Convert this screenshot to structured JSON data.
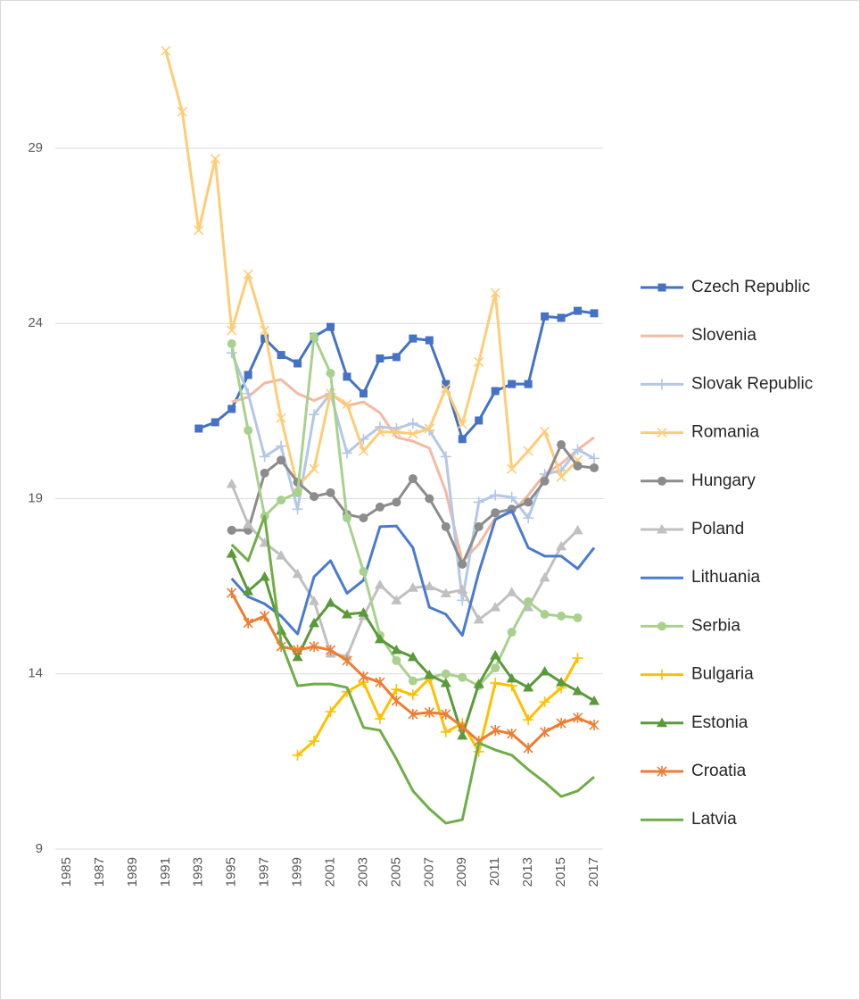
{
  "chart_data": {
    "type": "line",
    "x": [
      1985,
      1986,
      1987,
      1988,
      1989,
      1990,
      1991,
      1992,
      1993,
      1994,
      1995,
      1996,
      1997,
      1998,
      1999,
      2000,
      2001,
      2002,
      2003,
      2004,
      2005,
      2006,
      2007,
      2008,
      2009,
      2010,
      2011,
      2012,
      2013,
      2014,
      2015,
      2016,
      2017
    ],
    "xlim": [
      1985,
      2017
    ],
    "xticks": [
      1985,
      1987,
      1989,
      1991,
      1993,
      1995,
      1997,
      1999,
      2001,
      2003,
      2005,
      2007,
      2009,
      2011,
      2013,
      2015,
      2017
    ],
    "ylim": [
      9,
      33
    ],
    "yticks": [
      9,
      14,
      19,
      24,
      29
    ],
    "grid": true,
    "legend": "right",
    "series": [
      {
        "name": "Czech Republic",
        "color": "#4472c4",
        "marker": "square",
        "values": [
          null,
          null,
          null,
          null,
          null,
          null,
          null,
          null,
          21.0,
          21.18,
          21.56,
          22.53,
          23.57,
          23.1,
          22.86,
          23.62,
          23.9,
          22.48,
          22.0,
          23.0,
          23.04,
          23.57,
          23.52,
          22.27,
          20.7,
          21.23,
          22.07,
          22.27,
          22.27,
          24.2,
          24.16,
          24.36,
          24.29
        ]
      },
      {
        "name": "Slovenia",
        "color": "#f4b9a2",
        "marker": "none",
        "values": [
          null,
          null,
          null,
          null,
          null,
          null,
          null,
          null,
          null,
          null,
          21.76,
          21.9,
          22.3,
          22.4,
          22.0,
          21.8,
          22.0,
          21.65,
          21.76,
          21.45,
          20.75,
          20.64,
          20.44,
          19.2,
          17.2,
          17.7,
          18.45,
          18.6,
          19.1,
          19.7,
          20.0,
          20.4,
          20.75
        ]
      },
      {
        "name": "Slovak Republic",
        "color": "#b4c7e7",
        "marker": "plus",
        "values": [
          null,
          null,
          null,
          null,
          null,
          null,
          null,
          null,
          null,
          null,
          23.16,
          22.0,
          20.2,
          20.5,
          18.7,
          21.4,
          22.0,
          20.3,
          20.7,
          21.05,
          21.0,
          21.15,
          20.95,
          20.2,
          16.1,
          18.9,
          19.1,
          19.04,
          18.45,
          19.7,
          19.8,
          20.4,
          20.15
        ]
      },
      {
        "name": "Romania",
        "color": "#ffcc77",
        "marker": "x",
        "values": [
          null,
          null,
          null,
          null,
          null,
          null,
          31.78,
          30.04,
          26.66,
          28.7,
          23.8,
          25.4,
          23.8,
          21.3,
          19.35,
          19.85,
          22.0,
          21.7,
          20.36,
          20.9,
          20.9,
          20.85,
          21.0,
          22.15,
          21.13,
          22.9,
          24.87,
          19.85,
          20.36,
          20.92,
          19.62,
          20.1,
          null
        ]
      },
      {
        "name": "Hungary",
        "color": "#8c8c8c",
        "marker": "circle",
        "values": [
          null,
          null,
          null,
          null,
          null,
          null,
          null,
          null,
          null,
          null,
          18.1,
          18.1,
          19.73,
          20.1,
          19.47,
          19.06,
          19.17,
          18.55,
          18.45,
          18.76,
          18.9,
          19.57,
          19.0,
          18.2,
          17.13,
          18.2,
          18.6,
          18.7,
          18.9,
          19.5,
          20.54,
          19.93,
          19.88
        ]
      },
      {
        "name": "Poland",
        "color": "#c0c0c0",
        "marker": "triangle",
        "values": [
          null,
          null,
          null,
          null,
          null,
          null,
          null,
          null,
          null,
          null,
          19.42,
          18.27,
          17.74,
          17.38,
          16.85,
          16.08,
          14.58,
          14.5,
          15.65,
          16.54,
          16.1,
          16.46,
          16.5,
          16.3,
          16.4,
          15.55,
          15.9,
          16.33,
          15.9,
          16.75,
          17.64,
          18.1,
          null
        ]
      },
      {
        "name": "Lithuania",
        "color": "#4a7bd0",
        "marker": "none",
        "values": [
          null,
          null,
          null,
          null,
          null,
          null,
          null,
          null,
          null,
          null,
          16.72,
          16.2,
          16.0,
          15.65,
          15.14,
          16.77,
          17.23,
          16.3,
          16.67,
          18.2,
          18.22,
          17.6,
          15.9,
          15.7,
          15.1,
          16.9,
          18.4,
          18.66,
          17.6,
          17.36,
          17.36,
          17.0,
          17.6
        ]
      },
      {
        "name": "Serbia",
        "color": "#a9d18e",
        "marker": "circle",
        "values": [
          null,
          null,
          null,
          null,
          null,
          null,
          null,
          null,
          null,
          null,
          23.42,
          20.95,
          18.5,
          18.96,
          19.17,
          23.62,
          22.58,
          18.45,
          16.92,
          15.1,
          14.38,
          13.8,
          13.9,
          14.0,
          13.9,
          13.66,
          14.17,
          15.19,
          16.06,
          15.7,
          15.65,
          15.6,
          null
        ]
      },
      {
        "name": "Bulgaria",
        "color": "#ffc000",
        "marker": "plus",
        "values": [
          null,
          null,
          null,
          null,
          null,
          null,
          null,
          null,
          null,
          null,
          null,
          null,
          null,
          null,
          11.68,
          12.08,
          12.92,
          13.49,
          13.76,
          12.72,
          13.56,
          13.4,
          13.87,
          12.34,
          12.59,
          11.78,
          13.74,
          13.66,
          12.69,
          13.2,
          13.6,
          14.45,
          null
        ]
      },
      {
        "name": "Estonia",
        "color": "#5a9a3a",
        "marker": "triangle",
        "values": [
          null,
          null,
          null,
          null,
          null,
          null,
          null,
          null,
          null,
          null,
          17.43,
          16.36,
          16.77,
          15.24,
          14.48,
          15.45,
          16.03,
          15.7,
          15.75,
          14.99,
          14.68,
          14.48,
          13.97,
          13.74,
          12.24,
          13.71,
          14.53,
          13.87,
          13.61,
          14.07,
          13.76,
          13.51,
          13.23
        ]
      },
      {
        "name": "Croatia",
        "color": "#ed7d31",
        "marker": "star",
        "values": [
          null,
          null,
          null,
          null,
          null,
          null,
          null,
          null,
          null,
          null,
          16.31,
          15.45,
          15.65,
          14.78,
          14.68,
          14.78,
          14.68,
          14.38,
          13.92,
          13.76,
          13.23,
          12.85,
          12.9,
          12.85,
          12.49,
          12.08,
          12.39,
          12.29,
          11.88,
          12.34,
          12.59,
          12.75,
          12.54
        ]
      },
      {
        "name": "Latvia",
        "color": "#70ad47",
        "marker": "none",
        "values": [
          null,
          null,
          null,
          null,
          null,
          null,
          null,
          null,
          null,
          null,
          17.69,
          17.23,
          18.5,
          14.89,
          13.66,
          13.71,
          13.71,
          13.61,
          12.47,
          12.39,
          11.57,
          10.66,
          10.15,
          9.74,
          9.84,
          12.03,
          11.83,
          11.68,
          11.27,
          10.91,
          10.5,
          10.66,
          11.06
        ]
      }
    ]
  }
}
